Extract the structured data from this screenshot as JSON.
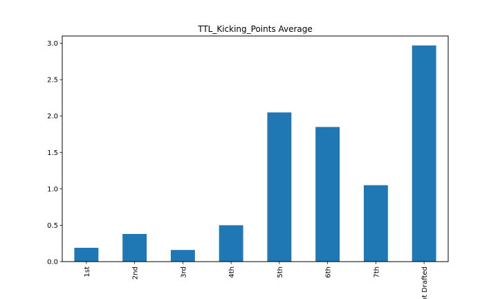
{
  "chart_data": {
    "type": "bar",
    "title": "TTL_Kicking_Points Average",
    "xlabel": "",
    "ylabel": "",
    "categories": [
      "1st",
      "2nd",
      "3rd",
      "4th",
      "5th",
      "6th",
      "7th",
      "Not Drafted"
    ],
    "values": [
      0.19,
      0.38,
      0.16,
      0.5,
      2.05,
      1.85,
      1.05,
      2.97
    ],
    "ylim": [
      0,
      3.1
    ],
    "yticks": [
      0.0,
      0.5,
      1.0,
      1.5,
      2.0,
      2.5,
      3.0
    ],
    "ytick_labels": [
      "0.0",
      "0.5",
      "1.0",
      "1.5",
      "2.0",
      "2.5",
      "3.0"
    ],
    "bar_color": "#1f77b4",
    "grid": false,
    "legend": "none",
    "xtick_rotation": 90
  }
}
